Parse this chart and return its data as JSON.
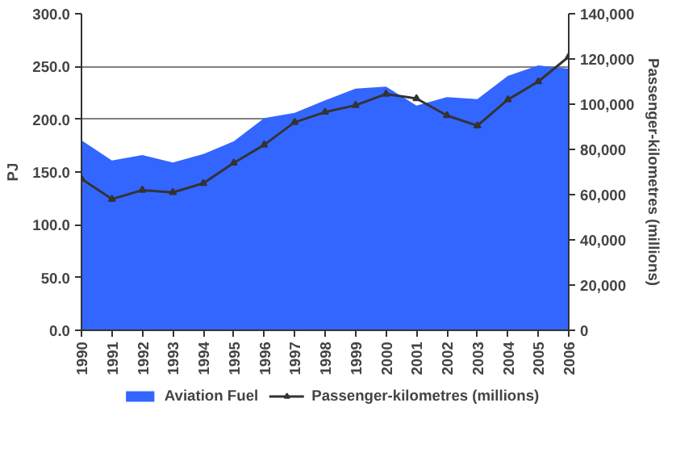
{
  "chart_data": {
    "type": "area",
    "ylabel": "PJ",
    "y2label": "Passenger-kilometres (millions)",
    "categories": [
      "1990",
      "1991",
      "1992",
      "1993",
      "1994",
      "1995",
      "1996",
      "1997",
      "1998",
      "1999",
      "2000",
      "2001",
      "2002",
      "2003",
      "2004",
      "2005",
      "2006"
    ],
    "series": [
      {
        "name": "Aviation Fuel",
        "color": "#3366ff",
        "values": [
          180,
          161,
          166,
          159,
          167,
          179,
          201,
          206,
          218,
          229,
          231,
          213,
          221,
          219,
          241,
          251,
          248
        ]
      },
      {
        "name": "Passenger-kilometres (millions)",
        "type": "line",
        "axis": "y2",
        "color": "#333333",
        "marker": "triangle",
        "values": [
          67000,
          58000,
          62000,
          61000,
          65000,
          74000,
          82000,
          92000,
          96500,
          99500,
          104500,
          102500,
          95000,
          90500,
          102000,
          110000,
          121000
        ]
      }
    ],
    "ylim": [
      0,
      300
    ],
    "yticks": [
      {
        "value": 0,
        "label": "0.0"
      },
      {
        "value": 50,
        "label": "50.0"
      },
      {
        "value": 100,
        "label": "100.0"
      },
      {
        "value": 150,
        "label": "150.0"
      },
      {
        "value": 200,
        "label": "200.0"
      },
      {
        "value": 250,
        "label": "250.0"
      },
      {
        "value": 300,
        "label": "300.0"
      }
    ],
    "y2lim": [
      0,
      140000
    ],
    "y2ticks": [
      0,
      {
        "value": 20000,
        "label": "20,000"
      },
      {
        "value": 40000,
        "label": "40,000"
      },
      {
        "value": 60000,
        "label": "60,000"
      },
      {
        "value": 80000,
        "label": "80,000"
      },
      {
        "value": 100000,
        "label": "100,000"
      },
      {
        "value": 120000,
        "label": "120,000"
      },
      {
        "value": 140000,
        "label": "140,000"
      }
    ],
    "grid": "y",
    "legend": "bottom"
  }
}
